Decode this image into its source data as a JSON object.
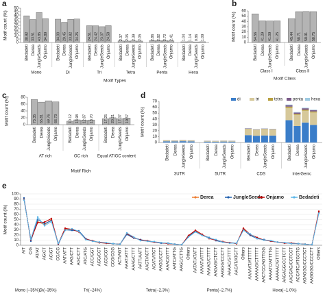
{
  "chart_data": [
    {
      "type": "bar",
      "label": "a",
      "ylabel": "Motif count (%)",
      "xlabel": "Motif Types",
      "color": "#b4b4b4",
      "categories": [
        "Mono",
        "Di",
        "Tri",
        "Tetra",
        "Penta",
        "Hexa"
      ],
      "subcategories": [
        "Bedadeti",
        "Derea",
        "JungleSeeds",
        "Onjamo"
      ],
      "values": [
        [
          38.92,
          33.51,
          43.85,
          34.89
        ],
        [
          34.0,
          29.45,
          33.82,
          34.25
        ],
        [
          24.51,
          24.42,
          23.07,
          24.58
        ],
        [
          2.37,
          2.05,
          2.39,
          2.05
        ],
        [
          2.86,
          2.82,
          2.72,
          2.41
        ],
        [
          1.04,
          1.14,
          0.86,
          1.09
        ]
      ],
      "value_labels": [
        [
          "38.92",
          "33.51",
          "43.85",
          "34.89"
        ],
        [
          "34.00",
          "29.45",
          "33.82",
          "34.25"
        ],
        [
          "24.51",
          "24.42",
          "23.07",
          "24.58"
        ],
        [
          "2.37",
          "2.05",
          "2.39",
          "2.05"
        ],
        [
          "2.86",
          "2.82",
          "2.72",
          "2.41"
        ],
        [
          "1.04",
          "1.14",
          "0.86",
          "1.09"
        ]
      ],
      "ylim": [
        0,
        50
      ],
      "yticks": [
        0,
        5,
        10,
        15,
        20,
        25,
        30,
        35,
        40,
        45,
        50
      ]
    },
    {
      "type": "bar",
      "label": "b",
      "ylabel": "Motif count (%)",
      "xlabel": "Motif Class",
      "color": "#b4b4b4",
      "categories": [
        "Class I",
        "Class II"
      ],
      "subcategories": [
        "Bedadeti",
        "Derea",
        "JungleSeeds",
        "Onjamo"
      ],
      "values": [
        [
          54.56,
          41.29,
          41.09,
          41.25
        ],
        [
          45.44,
          58.71,
          58.91,
          58.75
        ]
      ],
      "value_labels": [
        [
          "54.56",
          "41.29",
          "41.09",
          "41.25"
        ],
        [
          "45.44",
          "58.71",
          "58.91",
          "58.75"
        ]
      ],
      "ylim": [
        0,
        60
      ],
      "yticks": [
        0,
        10,
        20,
        30,
        40,
        50,
        60
      ]
    },
    {
      "type": "bar",
      "label": "c",
      "ylabel": "Motif count (%)",
      "xlabel": "Motif Rich",
      "color": "#b4b4b4",
      "categories": [
        "AT rich",
        "GC rich",
        "Equal AT/GC content"
      ],
      "subcategories": [
        "Bedadeti",
        "Derea",
        "JungleSeeds",
        "Onjamo"
      ],
      "values": [
        [
          73.35,
          65.81,
          69.76,
          66.73
        ],
        [
          10.12,
          13.98,
          12.87,
          13.7
        ],
        [
          17.25,
          20.21,
          17.37,
          19.57
        ]
      ],
      "value_labels": [
        [
          "73.35",
          "65.81",
          "69.76",
          "66.73"
        ],
        [
          "10.12",
          "13.98",
          "12.87",
          "13.70"
        ],
        [
          "17.25",
          "20.21",
          "17.37",
          "19.57"
        ]
      ],
      "ylim": [
        0,
        80
      ],
      "yticks": [
        0,
        20,
        40,
        60,
        80
      ]
    },
    {
      "type": "stacked_bar",
      "label": "d",
      "ylabel": "Motif count (%)",
      "categories": [
        "3UTR",
        "5UTR",
        "CDS",
        "InterGenic"
      ],
      "subcategories": [
        "Bedadeti",
        "Derea",
        "JungleSeeds",
        "Onjamo"
      ],
      "series": [
        {
          "name": "di",
          "color": "#3a7dc9",
          "values": [
            [
              2.0,
              1.8,
              2.2,
              1.9
            ],
            [
              1.5,
              1.4,
              1.6,
              1.5
            ],
            [
              12.5,
              11.5,
              12.0,
              11.8
            ],
            [
              38,
              28,
              34,
              30
            ]
          ]
        },
        {
          "name": "tri",
          "color": "#d6c89a",
          "values": [
            [
              1.2,
              1.0,
              1.3,
              1.1
            ],
            [
              1.0,
              0.9,
              1.1,
              1.0
            ],
            [
              10.5,
              10.0,
              10.8,
              10.2
            ],
            [
              21,
              19,
              20,
              21
            ]
          ]
        },
        {
          "name": "tetra",
          "color": "#b8a040",
          "values": [
            [
              0.3,
              0.3,
              0.3,
              0.3
            ],
            [
              0.2,
              0.2,
              0.2,
              0.2
            ],
            [
              0.4,
              0.4,
              0.4,
              0.4
            ],
            [
              2.0,
              1.8,
              1.9,
              1.9
            ]
          ]
        },
        {
          "name": "penta",
          "color": "#7b5a8a",
          "values": [
            [
              0.3,
              0.3,
              0.3,
              0.3
            ],
            [
              0.2,
              0.2,
              0.2,
              0.2
            ],
            [
              0.5,
              0.5,
              0.5,
              0.5
            ],
            [
              2.5,
              2.2,
              2.3,
              2.2
            ]
          ]
        },
        {
          "name": "hexa",
          "color": "#9ecae1",
          "values": [
            [
              0.2,
              0.2,
              0.2,
              0.2
            ],
            [
              0.1,
              0.1,
              0.1,
              0.1
            ],
            [
              0.3,
              0.3,
              0.3,
              0.3
            ],
            [
              1.0,
              0.9,
              1.0,
              0.9
            ]
          ]
        }
      ],
      "ylim": [
        0,
        70
      ],
      "yticks": [
        0,
        10,
        20,
        30,
        40,
        50,
        60,
        70
      ]
    },
    {
      "type": "line",
      "label": "e",
      "ylabel": "Motif count (%)",
      "groups": [
        {
          "name": "Mono (~35%)",
          "categories": [
            "A/T",
            "C/G"
          ]
        },
        {
          "name": "Di(~35%)",
          "categories": [
            "AT/AT",
            "AG/CT",
            "AC/GT",
            "CG/CG"
          ]
        },
        {
          "name": "Tri(~24%)",
          "categories": [
            "AAT/ATT",
            "AAG/CTT",
            "AGC/CTT",
            "ATC/ATG",
            "ACC/GGT",
            "AGG/CCT",
            "ACG/CGT",
            "CCG/CGG",
            "ACT/AGT"
          ]
        },
        {
          "name": "Tetra(~2.3%)",
          "categories": [
            "AAAT/ATTT",
            "AAAG/CTTT",
            "AATT/AATT",
            "AAGT/ACTT",
            "AGAT/ATCT",
            "AAGG/CCTT",
            "AAAC/GTTT",
            "AATC/ATTG",
            "AAGC/CTTG",
            "Others"
          ]
        },
        {
          "name": "Penta(~2.7%)",
          "categories": [
            "AATAT/ATATT",
            "AAAAT/ATTTT",
            "AAAAG/CTTTT",
            "AAGAG/CTCTT",
            "AAGGG/CCCTT",
            "AAAAC/GTTTT",
            "AACAT/ATGTT",
            "Others"
          ]
        },
        {
          "name": "Hexa(~1.0%)",
          "categories": [
            "AAAAAT/ATTTTT",
            "AAAAAG/CTTTTT",
            "AACTCC/AGTTGG",
            "AAAATC/ATTTTG",
            "AAAAAC/GTTTTT",
            "AAGAGG/CCTCTT",
            "AAGGAG/CCTCCT",
            "ACCATC/ATGGTG",
            "AGAGGG/CCCTCT",
            "AAGGGG/CCCCTT",
            "Others"
          ]
        }
      ],
      "series": [
        {
          "name": "Derea",
          "color": "#ed7d31",
          "values": [
            90,
            10,
            46,
            40,
            50,
            3,
            32,
            30,
            27,
            12,
            8,
            5,
            4,
            3,
            2,
            22,
            15,
            10,
            8,
            6,
            5,
            4,
            2,
            1,
            18,
            28,
            20,
            14,
            10,
            6,
            5,
            3,
            32,
            20,
            14,
            10,
            8,
            6,
            5,
            4,
            3,
            2,
            1,
            65
          ]
        },
        {
          "name": "JungleSeeds",
          "color": "#1f5fae",
          "values": [
            92,
            8,
            50,
            42,
            48,
            2,
            30,
            29,
            28,
            13,
            8,
            6,
            4,
            3,
            2,
            21,
            14,
            11,
            8,
            6,
            4,
            4,
            2,
            1,
            17,
            27,
            19,
            15,
            9,
            6,
            5,
            4,
            30,
            19,
            13,
            11,
            8,
            6,
            5,
            4,
            3,
            2,
            1,
            63
          ]
        },
        {
          "name": "Onjamo",
          "color": "#c00000",
          "values": [
            89,
            11,
            44,
            45,
            52,
            3,
            33,
            31,
            26,
            12,
            9,
            5,
            4,
            3,
            2,
            23,
            15,
            10,
            9,
            6,
            5,
            3,
            2,
            1,
            19,
            29,
            21,
            13,
            10,
            7,
            5,
            3,
            33,
            21,
            15,
            10,
            8,
            6,
            4,
            4,
            3,
            2,
            1,
            66
          ]
        },
        {
          "name": "Bedadeti",
          "color": "#5bb6e8",
          "values": [
            88,
            12,
            55,
            38,
            46,
            4,
            29,
            32,
            27,
            11,
            8,
            6,
            5,
            3,
            2,
            24,
            16,
            9,
            8,
            7,
            5,
            4,
            2,
            1,
            16,
            26,
            19,
            14,
            11,
            6,
            4,
            4,
            29,
            22,
            13,
            10,
            9,
            6,
            5,
            3,
            3,
            2,
            1,
            62
          ]
        }
      ],
      "ylim": [
        0,
        100
      ],
      "yticks": [
        0,
        10,
        20,
        30,
        40,
        50,
        60,
        70,
        80,
        90,
        100
      ]
    }
  ]
}
